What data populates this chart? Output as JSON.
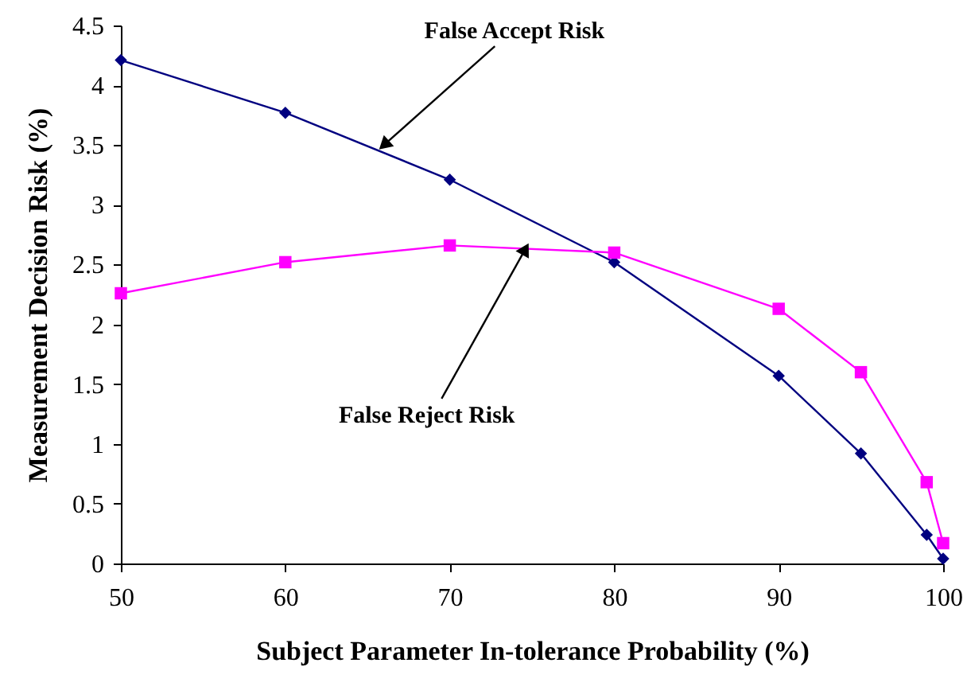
{
  "chart_data": {
    "type": "line",
    "xlabel": "Subject Parameter In-tolerance Probability (%)",
    "ylabel": "Measurement Decision Risk (%)",
    "x": [
      50,
      60,
      70,
      80,
      90,
      95,
      99,
      100
    ],
    "series": [
      {
        "color": "#000080",
        "marker": "diamond",
        "values": [
          4.21,
          3.77,
          3.21,
          2.52,
          1.57,
          0.92,
          0.24,
          0.04
        ]
      },
      {
        "color": "#ff00ff",
        "marker": "square",
        "values": [
          2.26,
          2.52,
          2.66,
          2.6,
          2.13,
          1.6,
          0.68,
          0.17
        ]
      }
    ],
    "xlim": [
      50,
      100
    ],
    "xticks": [
      50,
      60,
      70,
      80,
      90,
      100
    ],
    "ylim": [
      0,
      4.5
    ],
    "yticks": [
      0,
      0.5,
      1,
      1.5,
      2,
      2.5,
      3,
      3.5,
      4,
      4.5
    ],
    "grid": false,
    "line_style": "solid",
    "annotations": [
      {
        "text": "False Accept Risk",
        "x": 66,
        "y": 3.5
      },
      {
        "text": "False Reject Risk",
        "x": 74.6,
        "y": 2.63
      }
    ]
  }
}
